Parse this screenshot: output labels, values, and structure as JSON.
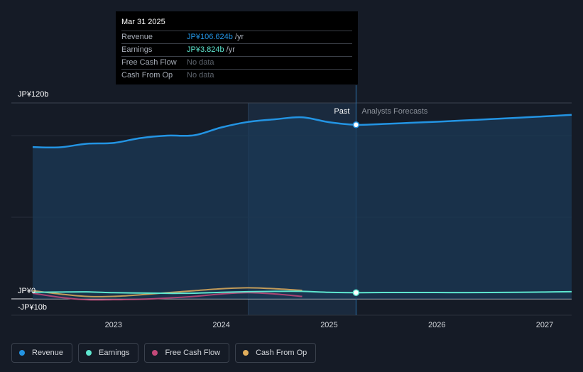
{
  "colors": {
    "revenue": "#2394e3",
    "earnings": "#5ee6cf",
    "free_cash_flow": "#c4497a",
    "cash_from_op": "#e1ae5c"
  },
  "tooltip": {
    "date": "Mar 31 2025",
    "rows": [
      {
        "label": "Revenue",
        "value": "JP¥106.624b",
        "unit": " /yr"
      },
      {
        "label": "Earnings",
        "value": "JP¥3.824b",
        "unit": " /yr"
      },
      {
        "label": "Free Cash Flow",
        "value": "No data",
        "unit": ""
      },
      {
        "label": "Cash From Op",
        "value": "No data",
        "unit": ""
      }
    ]
  },
  "legend": [
    {
      "label": "Revenue",
      "color": "#2394e3"
    },
    {
      "label": "Earnings",
      "color": "#5ee6cf"
    },
    {
      "label": "Free Cash Flow",
      "color": "#c4497a"
    },
    {
      "label": "Cash From Op",
      "color": "#e1ae5c"
    }
  ],
  "chart_data": {
    "type": "line",
    "y_tick_labels": [
      "JP¥120b",
      "JP¥0",
      "-JP¥10b"
    ],
    "y_ticks": [
      120,
      0,
      -10
    ],
    "ylim": [
      -10,
      120
    ],
    "xlim": [
      2022.27,
      2027.25
    ],
    "x_tick_labels": [
      "2023",
      "2024",
      "2025",
      "2026",
      "2027"
    ],
    "x_ticks": [
      2023,
      2024,
      2025,
      2026,
      2027
    ],
    "grid": true,
    "divider": {
      "x": 2025.25,
      "left_label": "Past",
      "right_label": "Analysts Forecasts"
    },
    "highlight_range": [
      2024.25,
      2025.25
    ],
    "marker_x": 2025.25,
    "series": [
      {
        "name": "Revenue",
        "key": "revenue",
        "fill": true,
        "x": [
          2022.25,
          2022.5,
          2022.75,
          2023.0,
          2023.25,
          2023.5,
          2023.75,
          2024.0,
          2024.25,
          2024.5,
          2024.75,
          2025.0,
          2025.25,
          2025.5,
          2025.75,
          2026.0,
          2026.25,
          2026.5,
          2026.75,
          2027.0,
          2027.25
        ],
        "y": [
          93.0,
          92.8,
          95.0,
          95.5,
          98.5,
          100.0,
          100.2,
          105.0,
          108.4,
          110.0,
          111.2,
          108.2,
          106.624,
          107.1,
          107.8,
          108.5,
          109.3,
          110.1,
          110.9,
          111.8,
          112.7
        ]
      },
      {
        "name": "Earnings",
        "key": "earnings",
        "fill": false,
        "x": [
          2022.25,
          2022.5,
          2022.75,
          2023.0,
          2023.25,
          2023.5,
          2023.75,
          2024.0,
          2024.25,
          2024.5,
          2024.75,
          2025.0,
          2025.25,
          2025.5,
          2025.75,
          2026.0,
          2026.25,
          2026.5,
          2026.75,
          2027.0,
          2027.25
        ],
        "y": [
          4.0,
          4.2,
          4.3,
          3.8,
          3.6,
          3.4,
          3.5,
          4.0,
          4.4,
          4.6,
          4.6,
          4.0,
          3.824,
          3.9,
          3.9,
          3.9,
          3.85,
          3.9,
          4.0,
          4.2,
          4.4
        ]
      },
      {
        "name": "Free Cash Flow",
        "key": "free_cash_flow",
        "fill": false,
        "x": [
          2022.25,
          2022.5,
          2022.75,
          2023.0,
          2023.25,
          2023.5,
          2023.75,
          2024.0,
          2024.25,
          2024.5,
          2024.75
        ],
        "y": [
          3.5,
          1.0,
          -0.5,
          -0.5,
          -0.2,
          0.5,
          1.5,
          3.0,
          3.8,
          3.0,
          1.5
        ]
      },
      {
        "name": "Cash From Op",
        "key": "cash_from_op",
        "fill": false,
        "x": [
          2022.25,
          2022.5,
          2022.75,
          2023.0,
          2023.25,
          2023.5,
          2023.75,
          2024.0,
          2024.25,
          2024.5,
          2024.75
        ],
        "y": [
          5.0,
          3.0,
          1.5,
          1.5,
          2.5,
          3.8,
          5.0,
          6.2,
          6.8,
          6.2,
          5.2
        ]
      }
    ]
  }
}
